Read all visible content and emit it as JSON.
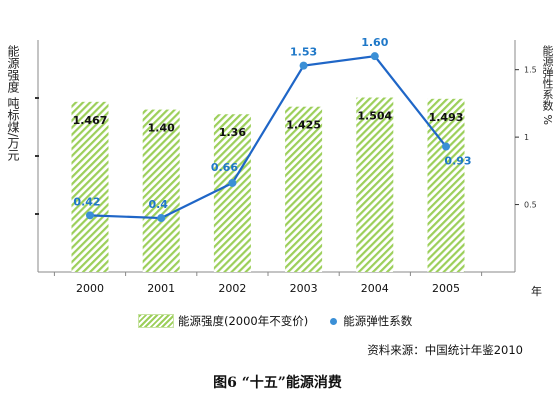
{
  "chart_data": {
    "type": "bar+line",
    "title": "图6 “十五”能源消费",
    "source": "资料来源：中国统计年鉴2010",
    "xlabel": "年",
    "ylabel_left": "能源强度 吨标煤/万元",
    "ylabel_right": "能源弹性系数 %",
    "categories": [
      "2000",
      "2001",
      "2002",
      "2003",
      "2004",
      "2005"
    ],
    "ylim_left": [
      0,
      2.0
    ],
    "ylim_right": [
      0,
      1.72
    ],
    "yticks_right": [
      "0.5",
      "1",
      "1.5"
    ],
    "series": [
      {
        "name": "能源强度(2000年不变价)",
        "type": "bar",
        "axis": "left",
        "values": [
          1.467,
          1.4,
          1.36,
          1.425,
          1.504,
          1.493
        ],
        "labels": [
          "1.467",
          "1.40",
          "1.36",
          "1.425",
          "1.504",
          "1.493"
        ]
      },
      {
        "name": "能源弹性系数",
        "type": "line",
        "axis": "right",
        "values": [
          0.42,
          0.4,
          0.66,
          1.53,
          1.6,
          0.93
        ],
        "labels": [
          "0.42",
          "0.4",
          "0.66",
          "1.53",
          "1.60",
          "0.93"
        ]
      }
    ],
    "legend_position": "bottom",
    "grid": false
  },
  "colors": {
    "bar_hatch": "#9ccf5a",
    "line": "#1f66c7",
    "point": "#3a8fd6",
    "point_label": "#1f78c8",
    "axis": "#888888"
  }
}
